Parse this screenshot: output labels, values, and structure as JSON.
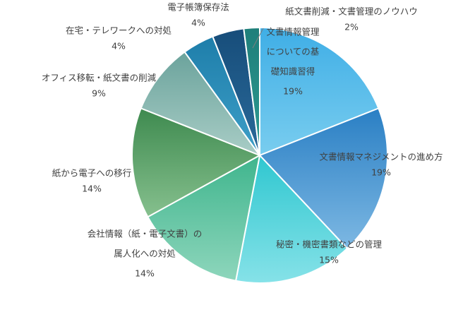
{
  "chart_data": {
    "type": "pie",
    "title": "",
    "start_angle_deg": 0,
    "direction": "clockwise",
    "slices": [
      {
        "lines": [
          "文書情報管理",
          "についての基",
          "礎知識習得"
        ],
        "percent_label": "19%",
        "value": 19,
        "color_start": "#3FAEE6",
        "color_end": "#79CDEF"
      },
      {
        "lines": [
          "文書情報マネジメントの進め方"
        ],
        "percent_label": "19%",
        "value": 19,
        "color_start": "#2A7FC4",
        "color_end": "#7DB8E3"
      },
      {
        "lines": [
          "秘密・機密書類などの管理"
        ],
        "percent_label": "15%",
        "value": 15,
        "color_start": "#2FC7D0",
        "color_end": "#86E2E8"
      },
      {
        "lines": [
          "会社情報（紙・電子文書）の",
          "属人化への対処"
        ],
        "percent_label": "14%",
        "value": 14,
        "color_start": "#3FB58D",
        "color_end": "#8ED6BC"
      },
      {
        "lines": [
          "紙から電子への移行"
        ],
        "percent_label": "14%",
        "value": 14,
        "color_start": "#3E8A4F",
        "color_end": "#86C08E"
      },
      {
        "lines": [
          "オフィス移転・紙文書の削減"
        ],
        "percent_label": "9%",
        "value": 9,
        "color_start": "#6BA39C",
        "color_end": "#A9CDC6"
      },
      {
        "lines": [
          "在宅・テレワークへの対処"
        ],
        "percent_label": "4%",
        "value": 4,
        "color_start": "#1E7EAA",
        "color_end": "#3E9FC8"
      },
      {
        "lines": [
          "電子帳簿保存法"
        ],
        "percent_label": "4%",
        "value": 4,
        "color_start": "#174D7A",
        "color_end": "#2A6A9A"
      },
      {
        "lines": [
          "紙文書削減・文書管理のノウハウ"
        ],
        "percent_label": "2%",
        "value": 2,
        "color_start": "#1F7F7A",
        "color_end": "#2E9A92"
      }
    ]
  }
}
